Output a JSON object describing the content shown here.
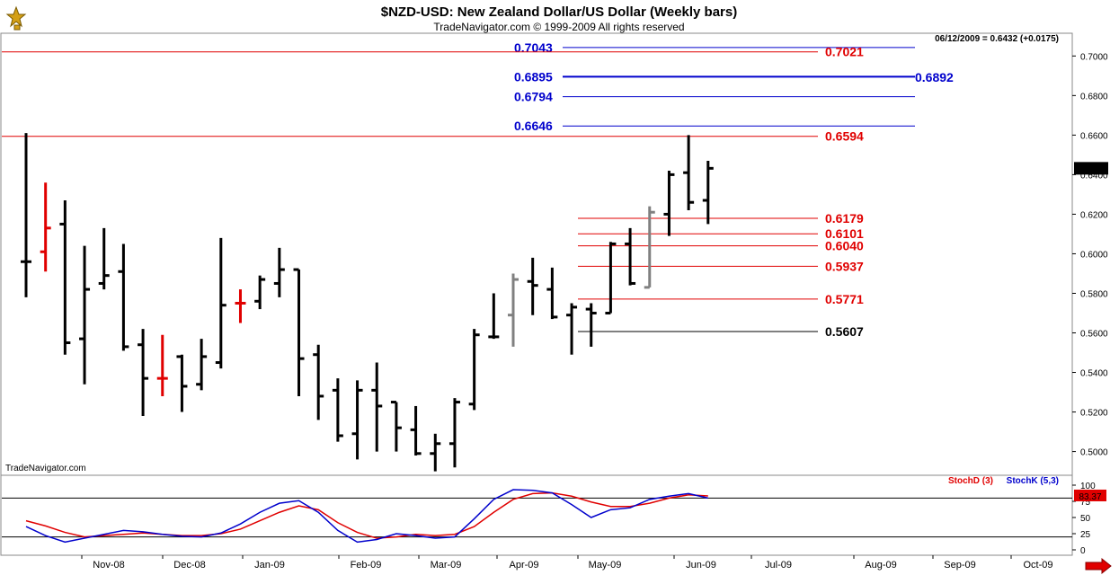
{
  "header": {
    "title": "$NZD-USD:  New Zealand Dollar/US Dollar  (Weekly bars)",
    "subtitle": "TradeNavigator.com © 1999-2009 All rights reserved",
    "status_line": "06/12/2009 = 0.6432 (+0.0175)",
    "watermark": "TradeNavigator.com"
  },
  "colors": {
    "up_bar": "#000000",
    "down_bar": "#e00000",
    "neutral_bar": "#808080",
    "blue_level": "#0000cc",
    "red_level": "#e00000",
    "stochD": "#e00000",
    "stochK": "#0000cc",
    "last_price_bg": "#000000",
    "stoch_value_bg": "#e00000"
  },
  "chart_data": [
    {
      "type": "ohlc",
      "title": "$NZD-USD:  New Zealand Dollar/US Dollar  (Weekly bars)",
      "ylim": [
        0.488,
        0.7115
      ],
      "y_ticks": [
        "0.7000",
        "0.6800",
        "0.6600",
        "0.6400",
        "0.6200",
        "0.6000",
        "0.5800",
        "0.5600",
        "0.5400",
        "0.5200",
        "0.5000"
      ],
      "x_ticks": [
        "Nov-08",
        "Dec-08",
        "Jan-09",
        "Feb-09",
        "Mar-09",
        "Apr-09",
        "May-09",
        "Jun-09",
        "Jul-09",
        "Aug-09",
        "Sep-09",
        "Oct-09"
      ],
      "last_price": "0.6432",
      "bars": [
        {
          "o": 0.596,
          "h": 0.661,
          "l": 0.578,
          "c": 0.596,
          "k": "up"
        },
        {
          "o": 0.601,
          "h": 0.636,
          "l": 0.591,
          "c": 0.613,
          "k": "down"
        },
        {
          "o": 0.615,
          "h": 0.627,
          "l": 0.549,
          "c": 0.555,
          "k": "up"
        },
        {
          "o": 0.557,
          "h": 0.604,
          "l": 0.534,
          "c": 0.582,
          "k": "up"
        },
        {
          "o": 0.585,
          "h": 0.613,
          "l": 0.582,
          "c": 0.589,
          "k": "up"
        },
        {
          "o": 0.591,
          "h": 0.605,
          "l": 0.551,
          "c": 0.553,
          "k": "up"
        },
        {
          "o": 0.554,
          "h": 0.562,
          "l": 0.518,
          "c": 0.537,
          "k": "up"
        },
        {
          "o": 0.537,
          "h": 0.559,
          "l": 0.528,
          "c": 0.537,
          "k": "down"
        },
        {
          "o": 0.548,
          "h": 0.549,
          "l": 0.52,
          "c": 0.533,
          "k": "up"
        },
        {
          "o": 0.534,
          "h": 0.557,
          "l": 0.531,
          "c": 0.548,
          "k": "up"
        },
        {
          "o": 0.545,
          "h": 0.608,
          "l": 0.542,
          "c": 0.574,
          "k": "up"
        },
        {
          "o": 0.575,
          "h": 0.582,
          "l": 0.565,
          "c": 0.575,
          "k": "down"
        },
        {
          "o": 0.576,
          "h": 0.589,
          "l": 0.572,
          "c": 0.587,
          "k": "up"
        },
        {
          "o": 0.585,
          "h": 0.603,
          "l": 0.578,
          "c": 0.592,
          "k": "up"
        },
        {
          "o": 0.592,
          "h": 0.592,
          "l": 0.528,
          "c": 0.547,
          "k": "up"
        },
        {
          "o": 0.549,
          "h": 0.554,
          "l": 0.516,
          "c": 0.528,
          "k": "up"
        },
        {
          "o": 0.531,
          "h": 0.537,
          "l": 0.505,
          "c": 0.508,
          "k": "up"
        },
        {
          "o": 0.509,
          "h": 0.536,
          "l": 0.496,
          "c": 0.531,
          "k": "up"
        },
        {
          "o": 0.531,
          "h": 0.545,
          "l": 0.5,
          "c": 0.523,
          "k": "up"
        },
        {
          "o": 0.525,
          "h": 0.525,
          "l": 0.5,
          "c": 0.512,
          "k": "up"
        },
        {
          "o": 0.511,
          "h": 0.523,
          "l": 0.498,
          "c": 0.499,
          "k": "up"
        },
        {
          "o": 0.499,
          "h": 0.509,
          "l": 0.49,
          "c": 0.504,
          "k": "up"
        },
        {
          "o": 0.504,
          "h": 0.527,
          "l": 0.492,
          "c": 0.525,
          "k": "up"
        },
        {
          "o": 0.524,
          "h": 0.562,
          "l": 0.521,
          "c": 0.559,
          "k": "up"
        },
        {
          "o": 0.558,
          "h": 0.58,
          "l": 0.557,
          "c": 0.558,
          "k": "up"
        },
        {
          "o": 0.569,
          "h": 0.59,
          "l": 0.553,
          "c": 0.587,
          "k": "neutral"
        },
        {
          "o": 0.586,
          "h": 0.598,
          "l": 0.569,
          "c": 0.584,
          "k": "up"
        },
        {
          "o": 0.582,
          "h": 0.593,
          "l": 0.567,
          "c": 0.568,
          "k": "up"
        },
        {
          "o": 0.569,
          "h": 0.575,
          "l": 0.549,
          "c": 0.573,
          "k": "up"
        },
        {
          "o": 0.572,
          "h": 0.575,
          "l": 0.553,
          "c": 0.57,
          "k": "up"
        },
        {
          "o": 0.57,
          "h": 0.606,
          "l": 0.57,
          "c": 0.605,
          "k": "up"
        },
        {
          "o": 0.605,
          "h": 0.613,
          "l": 0.584,
          "c": 0.585,
          "k": "up"
        },
        {
          "o": 0.583,
          "h": 0.624,
          "l": 0.583,
          "c": 0.621,
          "k": "neutral"
        },
        {
          "o": 0.62,
          "h": 0.642,
          "l": 0.609,
          "c": 0.64,
          "k": "up"
        },
        {
          "o": 0.641,
          "h": 0.66,
          "l": 0.622,
          "c": 0.626,
          "k": "up"
        },
        {
          "o": 0.627,
          "h": 0.647,
          "l": 0.615,
          "c": 0.6432,
          "k": "up"
        }
      ],
      "levels": [
        {
          "label": "0.7043",
          "value": 0.7043,
          "color": "blue",
          "thick": false,
          "side": "left"
        },
        {
          "label": "0.7021",
          "value": 0.7021,
          "color": "red",
          "thick": false,
          "side": "right"
        },
        {
          "label": "0.6895",
          "value": 0.6895,
          "color": "blue",
          "thick": true,
          "side": "left"
        },
        {
          "label": "0.6892",
          "value": 0.6892,
          "color": "blue",
          "thick": true,
          "side": "far"
        },
        {
          "label": "0.6794",
          "value": 0.6794,
          "color": "blue",
          "thick": false,
          "side": "left"
        },
        {
          "label": "0.6646",
          "value": 0.6646,
          "color": "blue",
          "thick": false,
          "side": "left"
        },
        {
          "label": "0.6594",
          "value": 0.6594,
          "color": "red",
          "thick": false,
          "side": "right"
        },
        {
          "label": "0.6179",
          "value": 0.6179,
          "color": "red",
          "thick": false,
          "side": "right"
        },
        {
          "label": "0.6101",
          "value": 0.6101,
          "color": "red",
          "thick": false,
          "side": "right"
        },
        {
          "label": "0.6040",
          "value": 0.604,
          "color": "red",
          "thick": false,
          "side": "right"
        },
        {
          "label": "0.5937",
          "value": 0.5937,
          "color": "red",
          "thick": false,
          "side": "right"
        },
        {
          "label": "0.5771",
          "value": 0.5771,
          "color": "red",
          "thick": false,
          "side": "right"
        },
        {
          "label": "0.5607",
          "value": 0.5607,
          "color": "black",
          "thick": false,
          "side": "right"
        }
      ]
    },
    {
      "type": "line",
      "series": [
        {
          "name": "StochD (3)",
          "color": "#e00000",
          "values": [
            45,
            37,
            27,
            20,
            22,
            24,
            26,
            24,
            22,
            22,
            25,
            32,
            45,
            58,
            68,
            62,
            42,
            27,
            18,
            20,
            24,
            22,
            24,
            36,
            58,
            78,
            87,
            88,
            83,
            74,
            67,
            67,
            72,
            80,
            85,
            83.37
          ]
        },
        {
          "name": "StochK (5,3)",
          "color": "#0000cc",
          "values": [
            36,
            22,
            12,
            18,
            24,
            30,
            28,
            24,
            21,
            20,
            26,
            40,
            58,
            72,
            76,
            58,
            30,
            12,
            16,
            25,
            22,
            18,
            20,
            48,
            78,
            93,
            92,
            88,
            70,
            50,
            62,
            65,
            78,
            83,
            87,
            80
          ]
        }
      ],
      "ylim": [
        0,
        100
      ],
      "y_ticks": [
        "100",
        "75",
        "50",
        "25",
        "0"
      ],
      "ref_levels": [
        80,
        20
      ],
      "last_value": "83.37"
    }
  ]
}
